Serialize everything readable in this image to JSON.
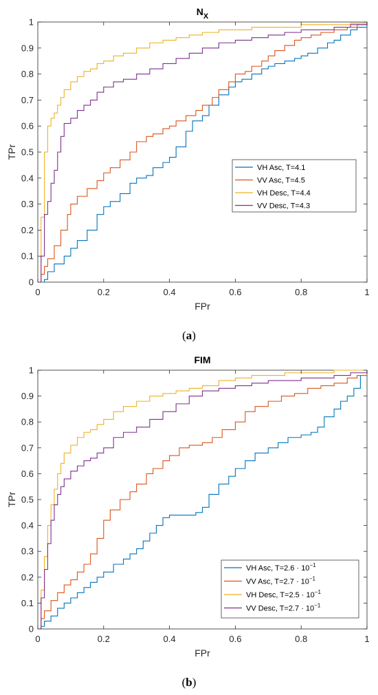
{
  "captions": [
    "(a)",
    "(b)"
  ],
  "captions_bold": [
    "a",
    "b"
  ],
  "chart_data": [
    {
      "type": "line",
      "title": "N",
      "title_subscript": "X",
      "xlabel": "FPr",
      "ylabel": "TPr",
      "xlim": [
        0,
        1
      ],
      "ylim": [
        0,
        1
      ],
      "xticks": [
        0,
        0.2,
        0.4,
        0.6,
        0.8,
        1
      ],
      "xtick_labels": [
        "0",
        "0.2",
        "0.4",
        "0.6",
        "0.8",
        "1"
      ],
      "yticks": [
        0,
        0.1,
        0.2,
        0.3,
        0.4,
        0.5,
        0.6,
        0.7,
        0.8,
        0.9,
        1
      ],
      "ytick_labels": [
        "0",
        "0.1",
        "0.2",
        "0.3",
        "0.4",
        "0.5",
        "0.6",
        "0.7",
        "0.8",
        "0.9",
        "1"
      ],
      "grid": false,
      "legend_position": "center-right",
      "series": [
        {
          "name": "VH Asc, T=4.1",
          "name_parts": [
            "VH Asc, T=4.1"
          ],
          "color": "#0072BD",
          "x": [
            0,
            0.02,
            0.03,
            0.05,
            0.08,
            0.1,
            0.12,
            0.15,
            0.18,
            0.2,
            0.22,
            0.25,
            0.28,
            0.3,
            0.33,
            0.35,
            0.38,
            0.4,
            0.42,
            0.45,
            0.47,
            0.5,
            0.52,
            0.55,
            0.58,
            0.6,
            0.62,
            0.65,
            0.68,
            0.7,
            0.72,
            0.75,
            0.78,
            0.8,
            0.82,
            0.85,
            0.88,
            0.9,
            0.92,
            0.95,
            0.97,
            1.0
          ],
          "y": [
            0,
            0.01,
            0.04,
            0.07,
            0.1,
            0.13,
            0.16,
            0.2,
            0.26,
            0.29,
            0.31,
            0.34,
            0.38,
            0.4,
            0.41,
            0.44,
            0.46,
            0.48,
            0.52,
            0.58,
            0.62,
            0.64,
            0.68,
            0.72,
            0.75,
            0.77,
            0.78,
            0.8,
            0.82,
            0.83,
            0.84,
            0.85,
            0.86,
            0.87,
            0.88,
            0.9,
            0.92,
            0.93,
            0.95,
            0.97,
            0.98,
            1.0
          ]
        },
        {
          "name": "VV Asc, T=4.5",
          "name_parts": [
            "VV Asc, T=4.5"
          ],
          "color": "#D95319",
          "x": [
            0,
            0.01,
            0.02,
            0.03,
            0.05,
            0.07,
            0.09,
            0.1,
            0.12,
            0.15,
            0.18,
            0.2,
            0.22,
            0.25,
            0.28,
            0.3,
            0.33,
            0.35,
            0.38,
            0.4,
            0.42,
            0.45,
            0.48,
            0.5,
            0.53,
            0.55,
            0.58,
            0.6,
            0.63,
            0.65,
            0.68,
            0.7,
            0.72,
            0.75,
            0.78,
            0.8,
            0.83,
            0.86,
            0.9,
            0.94,
            0.97,
            1.0
          ],
          "y": [
            0,
            0.03,
            0.06,
            0.09,
            0.14,
            0.2,
            0.26,
            0.3,
            0.33,
            0.36,
            0.39,
            0.42,
            0.44,
            0.47,
            0.5,
            0.54,
            0.56,
            0.57,
            0.59,
            0.6,
            0.62,
            0.64,
            0.66,
            0.68,
            0.71,
            0.74,
            0.77,
            0.8,
            0.81,
            0.83,
            0.85,
            0.87,
            0.89,
            0.91,
            0.93,
            0.94,
            0.95,
            0.96,
            0.97,
            0.98,
            0.99,
            1.0
          ]
        },
        {
          "name": "VH Desc, T=4.4",
          "name_parts": [
            "VH Desc, T=4.4"
          ],
          "color": "#EDB120",
          "x": [
            0,
            0.01,
            0.02,
            0.03,
            0.04,
            0.05,
            0.06,
            0.07,
            0.08,
            0.1,
            0.12,
            0.14,
            0.16,
            0.18,
            0.2,
            0.23,
            0.26,
            0.3,
            0.34,
            0.38,
            0.42,
            0.46,
            0.5,
            0.55,
            0.6,
            0.65,
            0.7,
            0.75,
            0.8,
            0.85,
            0.9,
            0.95,
            1.0
          ],
          "y": [
            0,
            0.25,
            0.5,
            0.6,
            0.63,
            0.65,
            0.68,
            0.71,
            0.74,
            0.77,
            0.79,
            0.81,
            0.82,
            0.84,
            0.85,
            0.87,
            0.88,
            0.9,
            0.92,
            0.93,
            0.94,
            0.95,
            0.96,
            0.97,
            0.97,
            0.98,
            0.98,
            0.98,
            0.99,
            0.99,
            0.99,
            0.995,
            1.0
          ]
        },
        {
          "name": "VV Desc, T=4.3",
          "name_parts": [
            "VV Desc, T=4.3"
          ],
          "color": "#7E2F8E",
          "x": [
            0,
            0.01,
            0.02,
            0.03,
            0.04,
            0.05,
            0.06,
            0.07,
            0.08,
            0.1,
            0.12,
            0.14,
            0.16,
            0.18,
            0.2,
            0.23,
            0.26,
            0.3,
            0.34,
            0.38,
            0.42,
            0.46,
            0.5,
            0.55,
            0.6,
            0.65,
            0.7,
            0.75,
            0.8,
            0.85,
            0.9,
            0.95,
            1.0
          ],
          "y": [
            0,
            0.1,
            0.26,
            0.31,
            0.38,
            0.43,
            0.5,
            0.56,
            0.61,
            0.63,
            0.66,
            0.68,
            0.7,
            0.73,
            0.75,
            0.77,
            0.78,
            0.8,
            0.82,
            0.84,
            0.86,
            0.88,
            0.9,
            0.92,
            0.93,
            0.94,
            0.95,
            0.96,
            0.97,
            0.97,
            0.98,
            0.99,
            1.0
          ]
        }
      ]
    },
    {
      "type": "line",
      "title": "FIM",
      "title_subscript": "",
      "xlabel": "FPr",
      "ylabel": "TPr",
      "xlim": [
        0,
        1
      ],
      "ylim": [
        0,
        1
      ],
      "xticks": [
        0,
        0.2,
        0.4,
        0.6,
        0.8,
        1
      ],
      "xtick_labels": [
        "0",
        "0.2",
        "0.4",
        "0.6",
        "0.8",
        "1"
      ],
      "yticks": [
        0,
        0.1,
        0.2,
        0.3,
        0.4,
        0.5,
        0.6,
        0.7,
        0.8,
        0.9,
        1
      ],
      "ytick_labels": [
        "0",
        "0.1",
        "0.2",
        "0.3",
        "0.4",
        "0.5",
        "0.6",
        "0.7",
        "0.8",
        "0.9",
        "1"
      ],
      "grid": false,
      "legend_position": "bottom-right",
      "series": [
        {
          "name": "VH Asc, T=2.6 · 10^-1",
          "name_parts": [
            "VH Asc, T=2.6 · 10",
            "−1"
          ],
          "color": "#0072BD",
          "x": [
            0,
            0.01,
            0.02,
            0.04,
            0.06,
            0.08,
            0.1,
            0.12,
            0.14,
            0.16,
            0.18,
            0.2,
            0.23,
            0.26,
            0.28,
            0.3,
            0.32,
            0.34,
            0.36,
            0.38,
            0.4,
            0.44,
            0.48,
            0.5,
            0.52,
            0.55,
            0.58,
            0.6,
            0.63,
            0.66,
            0.7,
            0.73,
            0.76,
            0.8,
            0.83,
            0.85,
            0.87,
            0.9,
            0.92,
            0.94,
            0.96,
            0.98,
            1.0
          ],
          "y": [
            0,
            0.01,
            0.03,
            0.05,
            0.08,
            0.1,
            0.12,
            0.14,
            0.16,
            0.18,
            0.2,
            0.22,
            0.25,
            0.27,
            0.29,
            0.31,
            0.34,
            0.37,
            0.4,
            0.43,
            0.44,
            0.44,
            0.45,
            0.47,
            0.52,
            0.56,
            0.59,
            0.62,
            0.65,
            0.68,
            0.7,
            0.72,
            0.74,
            0.75,
            0.76,
            0.78,
            0.82,
            0.85,
            0.88,
            0.9,
            0.93,
            0.98,
            1.0
          ]
        },
        {
          "name": "VV Asc, T=2.7 · 10^-1",
          "name_parts": [
            "VV Asc, T=2.7 · 10",
            "−1"
          ],
          "color": "#D95319",
          "x": [
            0,
            0.01,
            0.02,
            0.04,
            0.06,
            0.08,
            0.1,
            0.12,
            0.14,
            0.16,
            0.18,
            0.2,
            0.22,
            0.25,
            0.28,
            0.3,
            0.33,
            0.35,
            0.38,
            0.4,
            0.43,
            0.46,
            0.5,
            0.53,
            0.56,
            0.6,
            0.63,
            0.66,
            0.7,
            0.74,
            0.78,
            0.82,
            0.86,
            0.9,
            0.94,
            0.97,
            1.0
          ],
          "y": [
            0,
            0.04,
            0.07,
            0.11,
            0.14,
            0.17,
            0.19,
            0.22,
            0.25,
            0.29,
            0.35,
            0.42,
            0.46,
            0.5,
            0.53,
            0.56,
            0.6,
            0.62,
            0.65,
            0.67,
            0.7,
            0.71,
            0.72,
            0.74,
            0.77,
            0.8,
            0.84,
            0.86,
            0.88,
            0.9,
            0.91,
            0.93,
            0.94,
            0.95,
            0.97,
            0.98,
            1.0
          ]
        },
        {
          "name": "VH Desc, T=2.5 · 10^-1",
          "name_parts": [
            "VH Desc, T=2.5 · 10",
            "−1"
          ],
          "color": "#EDB120",
          "x": [
            0,
            0.01,
            0.02,
            0.03,
            0.04,
            0.05,
            0.06,
            0.07,
            0.08,
            0.1,
            0.12,
            0.14,
            0.16,
            0.18,
            0.2,
            0.23,
            0.26,
            0.3,
            0.34,
            0.38,
            0.42,
            0.46,
            0.5,
            0.55,
            0.6,
            0.65,
            0.7,
            0.75,
            0.8,
            0.85,
            0.9,
            0.95,
            1.0
          ],
          "y": [
            0,
            0.15,
            0.28,
            0.4,
            0.48,
            0.54,
            0.6,
            0.64,
            0.68,
            0.71,
            0.74,
            0.76,
            0.77,
            0.79,
            0.81,
            0.84,
            0.86,
            0.88,
            0.9,
            0.91,
            0.92,
            0.93,
            0.94,
            0.96,
            0.97,
            0.98,
            0.98,
            0.99,
            0.99,
            0.99,
            1.0,
            1.0,
            1.0
          ]
        },
        {
          "name": "VV Desc, T=2.7 · 10^-1",
          "name_parts": [
            "VV Desc, T=2.7 · 10",
            "−1"
          ],
          "color": "#7E2F8E",
          "x": [
            0,
            0.01,
            0.02,
            0.03,
            0.04,
            0.05,
            0.06,
            0.07,
            0.08,
            0.1,
            0.12,
            0.14,
            0.16,
            0.18,
            0.2,
            0.23,
            0.26,
            0.3,
            0.34,
            0.38,
            0.42,
            0.46,
            0.5,
            0.55,
            0.6,
            0.65,
            0.7,
            0.75,
            0.8,
            0.85,
            0.9,
            0.95,
            1.0
          ],
          "y": [
            0,
            0.12,
            0.23,
            0.33,
            0.42,
            0.48,
            0.52,
            0.55,
            0.58,
            0.61,
            0.63,
            0.65,
            0.66,
            0.68,
            0.7,
            0.74,
            0.76,
            0.78,
            0.81,
            0.84,
            0.87,
            0.9,
            0.92,
            0.93,
            0.94,
            0.95,
            0.96,
            0.96,
            0.97,
            0.97,
            0.98,
            0.99,
            1.0
          ]
        }
      ]
    }
  ]
}
